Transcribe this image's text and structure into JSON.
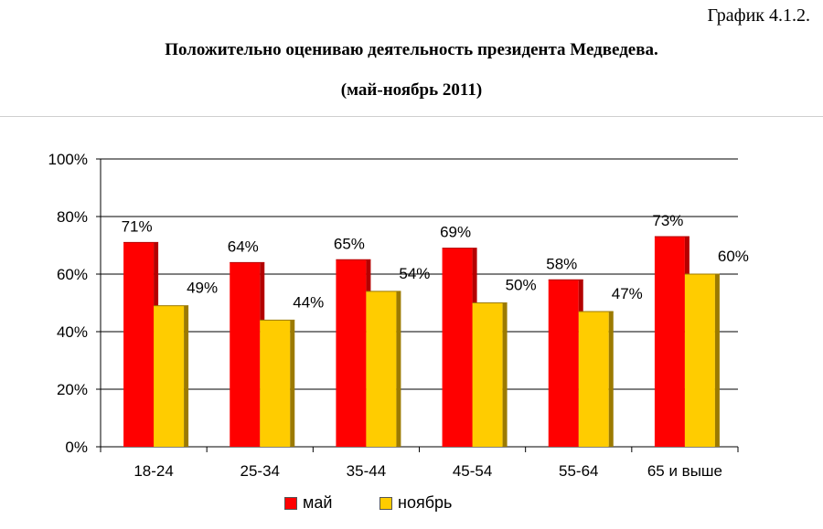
{
  "header": {
    "graph_number": "График 4.1.2.",
    "title": "Положительно оцениваю деятельность президента Медведева.",
    "subtitle": "(май-ноябрь 2011)"
  },
  "chart_data": {
    "type": "bar",
    "categories": [
      "18-24",
      "25-34",
      "35-44",
      "45-54",
      "55-64",
      "65 и выше"
    ],
    "series": [
      {
        "name": "май",
        "values": [
          71,
          64,
          65,
          69,
          58,
          73
        ],
        "color": "#ff0000",
        "side_color": "#b40000"
      },
      {
        "name": "ноябрь",
        "values": [
          49,
          44,
          54,
          50,
          47,
          60
        ],
        "color": "#ffcc00",
        "side_color": "#9c7a00"
      }
    ],
    "data_labels": [
      [
        "71%",
        "64%",
        "65%",
        "69%",
        "58%",
        "73%"
      ],
      [
        "49%",
        "44%",
        "54%",
        "50%",
        "47%",
        "60%"
      ]
    ],
    "y_ticks": [
      "0%",
      "20%",
      "40%",
      "60%",
      "80%",
      "100%"
    ],
    "ylim": [
      0,
      100
    ],
    "grid": true,
    "legend_position": "bottom"
  }
}
